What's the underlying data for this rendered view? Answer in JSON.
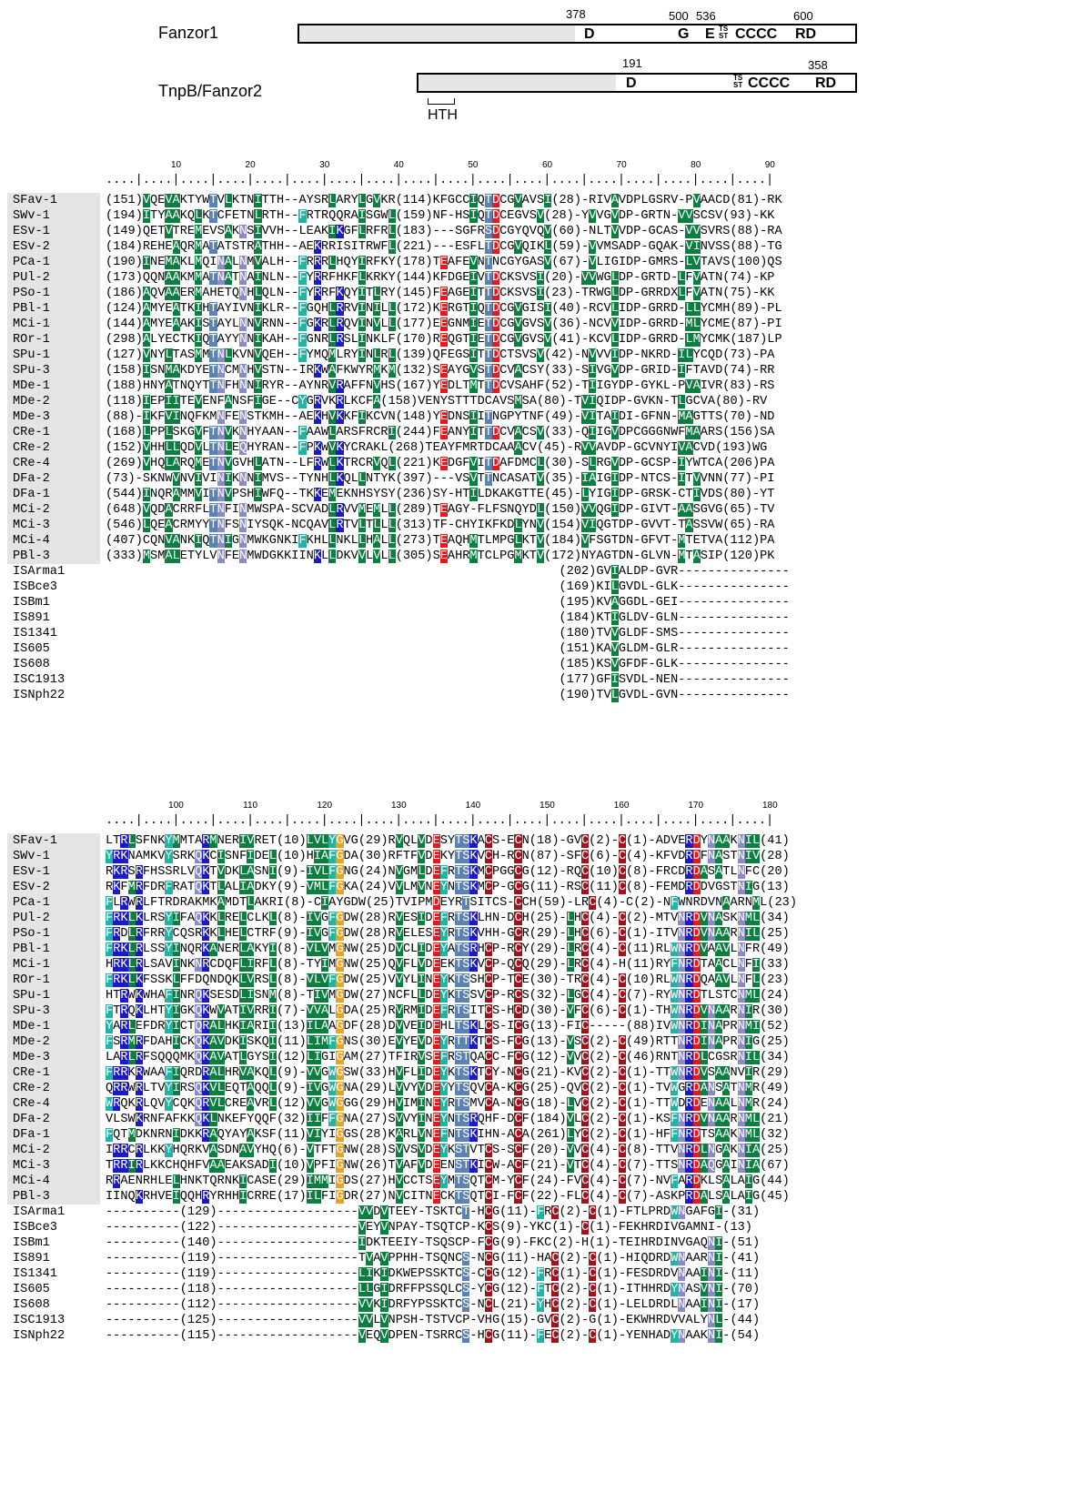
{
  "domain_architecture": {
    "fanzor1": {
      "label": "Fanzor1",
      "positions": [
        "378",
        "500",
        "536",
        "600"
      ],
      "motifs": [
        "D",
        "G",
        "E",
        "CCCC",
        "RD"
      ],
      "ts_st": [
        "TS",
        "ST"
      ]
    },
    "tnpb": {
      "label": "TnpB/Fanzor2",
      "positions": [
        "191",
        "358"
      ],
      "motifs": [
        "D",
        "CCCC",
        "RD"
      ],
      "ts_st": [
        "TS",
        "ST"
      ],
      "hth_label": "HTH"
    }
  },
  "alignment": {
    "block1": {
      "ruler_dots": "....|....|....|....|....|....|....|....|....|....|....|....|....|....|....|....|....|....|",
      "ticks": [
        "10",
        "20",
        "30",
        "40",
        "50",
        "60",
        "70",
        "80",
        "90"
      ],
      "rows": [
        {
          "name": "SFav-1",
          "seq": "(151)VQEVAKTYWTVLKTNITTH--AYSRLARYLGVKR(114)KFGCCIQTDCGVAVSI(28)-RIVAVDPLGSRV-PVAACD(81)-RK"
        },
        {
          "name": "SWv-1",
          "seq": "(194)ITYAAKQLKTCFETNLRTH--FRTRQQRAISGWL(159)NF-HSIQTDCEGVSV(28)-YVVGVDP-GRTN-VVSCSV(93)-KK"
        },
        {
          "name": "ESv-1",
          "seq": "(149)QETVTREMEVSAKNSIVVH--LEAKIKGFLRFRL(183)---SGFRSDCGYQVQV(60)-NLTVVDP-GCAS-VVSVRS(88)-RA"
        },
        {
          "name": "ESv-2",
          "seq": "(184)REHEAQRMATATSTRATHH--AEKRRISITRWFL(221)---ESFLTDCGVQIKL(59)-VVMSADP-GQAK-VINVSS(88)-TG"
        },
        {
          "name": "PCa-1",
          "seq": "(190)INEMAKLMQINALNMVALH--FRRRLHQYIRFKY(178)TEAFEVNTNCGYGASV(67)-VLIGIDP-GMRS-LVTAVS(100)QS"
        },
        {
          "name": "PUl-2",
          "seq": "(173)QQNAAKMMATNATNAINLN--FYRRFHKFLKRKY(144)KFDGEIVTDCKSVSI(20)-VVWGLDP-GRTD-LFVATN(74)-KP"
        },
        {
          "name": "PSo-1",
          "seq": "(186)AQVAAERMAHETQNHLQLN--FYRRFKQYITLRY(145)FEAGEITTDCKSVSI(23)-TRWGLDP-GRRDXLFVATN(75)-KK"
        },
        {
          "name": "PBl-1",
          "seq": "(124)AMYEATKIHTAYIVNIKLR--FGQHLRRVINILL(172)KERGTIQTDCGVGISI(40)-RCVLIDP-GRRD-LLYCMH(89)-PL"
        },
        {
          "name": "MCi-1",
          "seq": "(144)AMYEAAKISTAYLNNVRNN--FGKRLRQVINVLL(177)EEGNMIETDCGVGVSV(36)-NCVVIDP-GRRD-MLYCME(87)-PI"
        },
        {
          "name": "ROr-1",
          "seq": "(298)ALYECTKIQTAYYNNIKAH--FGNRLRSLINKLF(170)REQGTIETDCGVGVSV(41)-KCVLIDP-GRRD-LMYCMK(187)LP"
        },
        {
          "name": "SPu-1",
          "seq": "(127)VNYLTASMMTNLKVNVQEH--FYMQMLRYINLRL(139)QFEGSITTDCTSVSV(42)-NVVVIDP-NKRD-ILYCQD(73)-PA"
        },
        {
          "name": "SPu-3",
          "seq": "(158)ISNMAKDYETNCMNHVSTN--IRKWAFKWYRMKM(132)SEAYGVSTDCVACSY(33)-SIVGVDP-GRID-IFTAVD(74)-RR"
        },
        {
          "name": "MDe-1",
          "seq": "(188)HNYATNQYTTNFHNNIRYR--AYNRVRAFFNVHS(167)YEDLTMTTDCVSAHF(52)-TIIGYDP-GYKL-PVAIVR(83)-RS"
        },
        {
          "name": "MDe-2",
          "seq": "(118)IEPIITEVENFANSFIGE--CYGRVKRLKCFA(158)VENYSTTTDCAVSMSA(80)-TVIQIDP-GVKN-TLGCVA(80)-RV"
        },
        {
          "name": "MDe-3",
          "seq": "(88)-IKFVINQFKMNFENSTKMH--AEKHVKKFIKCVN(148)YEDNSIITNGPYTNF(49)-VITAIDI-GFNN-MAGTTS(70)-ND"
        },
        {
          "name": "CRe-1",
          "seq": "(168)LPPLSKGVFTNVKNHYAAN--FAAWLARSFRCRI(244)FEANYITTDCVACSV(33)-QIIGVDPCGGGNWFMAARS(156)SA"
        },
        {
          "name": "CRe-2",
          "seq": "(152)VHHLLQDVLTNLEQHYRAN--FPKWVKYCRAKL(268)TEAYFMRTDCAAACV(45)-RVVAVDP-GCVNYIVACVD(193)WG"
        },
        {
          "name": "CRe-4",
          "seq": "(269)VHQLARQMETNVGVHLATN--LFRWLKTRCRVQL(221)KEDGFVITDAFDMCL(30)-SLRGVDP-GCSP-IYWTCA(206)PA"
        },
        {
          "name": "DFa-2",
          "seq": "(73)-SKNWVNVIVINIKNNIMVS--TYNHLKQLLNTYK(397)---VSVTTNCASATV(35)-IAIGIDP-NTCS-ITVVNN(77)-PI"
        },
        {
          "name": "DFa-1",
          "seq": "(544)INQRAMMVITNVPSHIWFQ--TKKEMEKNHSYSY(236)SY-HTILDKAKGTTE(45)-LYIGIDP-GRSK-CTIVDS(80)-YT"
        },
        {
          "name": "MCi-2",
          "seq": "(648)VQDACRRFLTNFINMWSPA-SCVADLRVVMEMLL(289)TEAGY-FLFSNQYDL(150)VVQGIDP-GIVT-AASGVG(65)-TV"
        },
        {
          "name": "MCi-3",
          "seq": "(546)LQEACRMYYTNFSNIYSQK-NCQAVLRTVLTLLL(313)TF-CHYIKFKDLYNV(154)VIQGTDP-GVVT-TASSVW(65)-RA"
        },
        {
          "name": "MCi-4",
          "seq": "(407)CQNVANKIQTNIGNMWKGNKIFKHLLNKLLHALL(273)TEAQHMTLMPGLKTV(184)VFSGTDN-GFVT-MTETVA(112)PA"
        },
        {
          "name": "PBl-3",
          "seq": "(333)MSMALETYLVNFENMWDGKKIINKLLDKVVLVLL(305)SEAHRMTCLPGMKTV(172)NYAGTDN-GLVN-MTASIP(120)PK"
        },
        {
          "name": "ISArma1",
          "seq": "                                                             (202)GVIALDP-GVR---------------"
        },
        {
          "name": "ISBce3",
          "seq": "                                                             (169)KILGVDL-GLK---------------"
        },
        {
          "name": "ISBm1",
          "seq": "                                                             (195)KVAGGDL-GEI---------------"
        },
        {
          "name": "IS891",
          "seq": "                                                             (184)KTIGLDV-GLN---------------"
        },
        {
          "name": "IS1341",
          "seq": "                                                             (180)TVVGLDF-SMS---------------"
        },
        {
          "name": "IS605",
          "seq": "                                                             (151)KAVGLDM-GLR---------------"
        },
        {
          "name": "IS608",
          "seq": "                                                             (185)KSVGFDF-GLK---------------"
        },
        {
          "name": "ISC1913",
          "seq": "                                                             (177)GFISVDL-NEN---------------"
        },
        {
          "name": "ISNph22",
          "seq": "                                                             (190)TVLGVDL-GVN---------------"
        }
      ]
    },
    "block2": {
      "ruler_dots": "....|....|....|....|....|....|....|....|....|....|....|....|....|....|....|....|....|....|",
      "ticks": [
        "100",
        "110",
        "120",
        "130",
        "140",
        "150",
        "160",
        "170",
        "180"
      ],
      "rows": [
        {
          "name": "SFav-1",
          "seq": "LTRLSFNKYMMTARMNERIVRET(10)LVLYGVG(29)RVQLVDESYTSKACS-ECN(18)-GVC(2)-C(1)-ADVERDYNAAKNIL(41)"
        },
        {
          "name": "SWv-1",
          "seq": "YRKNAMKVYSRKQKCISNFIDEL(10)HIAFGDA(30)RFTFVDEKYTSKVCH-RCN(87)-SFC(6)-C(4)-KFVDRDFNASTNIV(28)"
        },
        {
          "name": "ESv-1",
          "seq": "RKRSRFHSSRLVQKTVDKLASNI(9)-IVLFGNG(24)NVGMLDEFRTSKMCPGGCG(12)-RQC(10)C(8)-FRCDRDASATLNFC(20)"
        },
        {
          "name": "ESv-2",
          "seq": "RKFMRFDRFRATQKTLALIADKY(9)-VMLFGKA(24)VVLMVNEYNTSKMCP-GCG(11)-RSC(11)C(8)-FEMDRDDVGSTNIG(13)"
        },
        {
          "name": "PCa-1",
          "seq": "FLRWRLFTRDRAKMKAMDTLAKRI(8)-CIAYGDW(25)TVIPMDEYRTSITCS-CCH(59)-LRC(4)-C(2)-NFWNRDVNAARNML(23)"
        },
        {
          "name": "PUl-2",
          "seq": "FRKLKLRSYIFAQKKLRELCLKL(8)-IVGFGDW(28)RVESIDEFRTSKLHN-DCH(25)-LHC(4)-C(2)-MTVNRDVNASKNML(34)"
        },
        {
          "name": "PSo-1",
          "seq": "FRDLRFRRYCQSRKKLHELCTRF(9)-IVGFGDW(28)RVELESEYRTSKVHH-GCR(29)-LHC(6)-C(1)-ITVNRDVNAARNIL(25)"
        },
        {
          "name": "PBl-1",
          "seq": "FRKLRLSSYINQRKANERLAKYI(8)-VLVMGNW(25)DVCLIDEYATSRHCP-RCY(29)-LRC(4)-C(11)RLWNRDVAAVLNFR(49)"
        },
        {
          "name": "MCi-1",
          "seq": "HRKLRLSAVINKNRCDQFLIRFL(8)-TYIMGNW(25)QVFLVDEEKTSKVCP-QCQ(29)-LRC(4)-H(11)RYFNRDTAACLNFI(33)"
        },
        {
          "name": "ROr-1",
          "seq": "FRKLKFSSKLFFDQNDQKLVRSL(8)-VLVFGDW(25)VVYLINEYKTSSHCP-TCE(30)-TRC(4)-C(10)RLWNRDQAAVLNFL(23)"
        },
        {
          "name": "SPu-1",
          "seq": "HTRWKWHAFINRQKSESDLISNM(8)-TIVMGDW(27)NCFLLDEYKTSSVCP-RCS(32)-LGC(4)-C(7)-RYWNRDTLSTCNML(24)"
        },
        {
          "name": "SPu-3",
          "seq": "FTRQKLHTYIGKQKWVATIVRRI(7)-VVALGDA(25)RVRMIDEFRTSITCS-HCD(30)-VFC(6)-C(1)-THWNRDVNAARNIR(30)"
        },
        {
          "name": "MDe-1",
          "seq": "YARLEFDRYICTQRALHKIARII(13)ILAAGDF(28)DVVEIDEHLTSKLCS-ICG(13)-FIC-----(88)IVWNRDINAPRNMI(52)"
        },
        {
          "name": "MDe-2",
          "seq": "FSRMRFDAHICKQKAVDKISKQI(11)LIMFGNS(30)EVYEVDEYRTTKTCS-FCG(13)-VSC(2)-C(49)RTTNRDINAPRNIG(25)"
        },
        {
          "name": "MDe-3",
          "seq": "LARLRFSQQQMKQKAVATLGYSI(12)LIGIGAM(27)TFIRVSEFRSTQACC-FCG(12)-VVC(2)-C(46)RNTNRDLCGSRNIL(34)"
        },
        {
          "name": "CRe-1",
          "seq": "FRRKRWAAFIQRDRALHRVAKQL(9)-VVGWGSW(33)HVFLIDEYKTSKTCY-NCG(21)-KVC(2)-C(1)-TTWNRDVSAANVIR(29)"
        },
        {
          "name": "CRe-2",
          "seq": "QRRWRLTVYIRSQKVLEQTAQQL(9)-IVGWGNA(29)LVVYVDEYYTSQVCA-KCG(25)-QVC(2)-C(1)-TVWGRDANSATNMR(49)"
        },
        {
          "name": "CRe-4",
          "seq": "WRQKRLQVYCQKQRVLCREAVRL(12)VVGWGGG(29)HVIMINEYRTSMVCA-NCG(18)-LVC(2)-C(1)-TTWDRDENAALNMR(24)"
        },
        {
          "name": "DFa-2",
          "seq": "VLSWKRNFAFKKQKLNKEFYQQF(32)IIFFGNA(27)SVVYINEYNTSRQHF-DCF(184)VLC(2)-C(1)-KSFNRDVNAARNML(21)"
        },
        {
          "name": "DFa-1",
          "seq": "FQTMDKNRNIDKKRAQYAYAKSF(11)VIYIGGS(28)KARLVNEFNTSKIHN-ACA(261)LYC(2)-C(1)-HFFNRDTSAAKNML(32)"
        },
        {
          "name": "MCi-2",
          "seq": "IRRCRLKKYHQRKVASDNAVYHQ(6)-VTFTGNW(28)SVVSVDEYKSTVTCS-SCF(20)-VVC(4)-C(8)-TTVNRDLNGAKNIA(25)"
        },
        {
          "name": "MCi-3",
          "seq": "TRRIRLKKCHQHFVAAEAKSADI(10)VPFIGNW(26)TVAFVDEENSTKICW-ACF(21)-VTC(4)-C(7)-TTSNRDAQGAINIA(67)"
        },
        {
          "name": "MCi-4",
          "seq": "RRAENRHLELHNKTQRNKICASE(29)IMMIGDS(27)HVCCTSEYMTSQTCM-YCF(24)-FVC(4)-C(7)-NVFARDKLSALAIG(44)"
        },
        {
          "name": "PBl-3",
          "seq": "IINQKRHVEIQQHRYRHHICRRE(17)ILFIGDR(27)NVCITNECKTSQTCI-FCF(22)-FLC(4)-C(7)-ASKPRDALSALAIG(45)"
        },
        {
          "name": "ISArma1",
          "seq": "----------(129)-------------------VVDVTEEY-TSKTCT-HCG(11)-FRC(2)-C(1)-FTLPRDWNGAFGI-(31)"
        },
        {
          "name": "ISBce3",
          "seq": "----------(122)-------------------VEYVNPAY-TSQTCP-KCS(9)-YKC(1)-C(1)-FEKHRDIVGAMNI-(13)"
        },
        {
          "name": "ISBm1",
          "seq": "----------(140)-------------------IDKTEEIY-TSQSCP-FCG(9)-FKC(2)-H(1)-TEIHRDINVGAQNI-(51)"
        },
        {
          "name": "IS891",
          "seq": "----------(119)-------------------TVAVPPHH-TSQNCS-NCG(11)-HAC(2)-C(1)-HIQDRDWNAARNI-(41)"
        },
        {
          "name": "IS1341",
          "seq": "----------(119)-------------------LIKIDKWEPSSKTCS-CCG(12)-FRC(1)-C(1)-FESDRDVNAAINI-(11)"
        },
        {
          "name": "IS605",
          "seq": "----------(118)-------------------LLGIDRFFPSSQLCS-YCG(12)-FTC(2)-C(1)-ITHHRDYNASVNI-(70)"
        },
        {
          "name": "IS608",
          "seq": "----------(112)-------------------VVKIDRFYPSSKTCS-NCL(21)-YHC(2)-C(1)-LELDRDLNAAINI-(17)"
        },
        {
          "name": "ISC1913",
          "seq": "----------(125)-------------------VVLVNPSH-TSTVCP-VHG(15)-GVC(2)-G(1)-EKWHRDVVALYNL-(44)"
        },
        {
          "name": "ISNph22",
          "seq": "----------(115)-------------------VEQVDPEN-TSRRCS-HCG(11)-FEC(2)-C(1)-YENHADYNAAKNI-(54)"
        }
      ]
    }
  },
  "residue_colors": {
    "green": "#0b7f3f",
    "blue": "#1a1acc",
    "lavender": "#8a8ac8",
    "teal": "#21b3a3",
    "red": "#e8171b",
    "orange": "#eba21f",
    "magenta": "#e61be0",
    "darkred": "#a3121a",
    "steel": "#5b82b4",
    "gray": "#7a7568"
  }
}
